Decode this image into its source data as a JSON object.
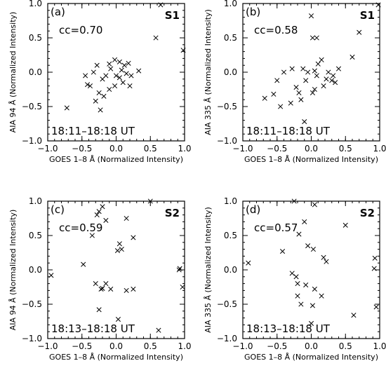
{
  "chart_data": [
    {
      "type": "scatter",
      "panel_label": "(a)",
      "set_label": "S1",
      "cc": "cc=0.70",
      "time_range": "18:11–18:18 UT",
      "xlabel": "GOES 1–8 Å (Normalized Intensity)",
      "ylabel": "AIA 94 Å (Normalized Intensity)",
      "xlim": [
        -1.0,
        1.0
      ],
      "ylim": [
        -1.0,
        1.0
      ],
      "xticks": [
        "−1.0",
        "−0.5",
        "0.0",
        "0.5",
        "1.0"
      ],
      "yticks": [
        "−1.0",
        "−0.5",
        "0.0",
        "0.5",
        "1.0"
      ],
      "marker": "x",
      "points": [
        [
          0.65,
          0.98
        ],
        [
          0.58,
          0.5
        ],
        [
          0.98,
          0.32
        ],
        [
          -0.72,
          -0.52
        ],
        [
          -0.23,
          -0.55
        ],
        [
          -0.1,
          0.12
        ],
        [
          -0.02,
          0.18
        ],
        [
          0.05,
          0.15
        ],
        [
          0.12,
          0.1
        ],
        [
          0.18,
          0.13
        ],
        [
          0.33,
          0.02
        ],
        [
          -0.28,
          0.1
        ],
        [
          -0.33,
          0.0
        ],
        [
          -0.45,
          -0.05
        ],
        [
          -0.42,
          -0.18
        ],
        [
          -0.38,
          -0.2
        ],
        [
          -0.2,
          -0.1
        ],
        [
          -0.25,
          -0.3
        ],
        [
          -0.18,
          -0.35
        ],
        [
          -0.1,
          -0.25
        ],
        [
          -0.08,
          0.05
        ],
        [
          0.0,
          -0.05
        ],
        [
          0.05,
          -0.08
        ],
        [
          0.1,
          -0.15
        ],
        [
          0.15,
          -0.02
        ],
        [
          0.22,
          -0.05
        ],
        [
          -0.15,
          -0.05
        ],
        [
          -0.02,
          -0.2
        ],
        [
          0.2,
          -0.2
        ],
        [
          -0.3,
          -0.42
        ],
        [
          0.08,
          0.03
        ]
      ]
    },
    {
      "type": "scatter",
      "panel_label": "(b)",
      "set_label": "S1",
      "cc": "cc=0.58",
      "time_range": "18:11–18:18 UT",
      "xlabel": "GOES 1–8 Å (Normalized Intensity)",
      "ylabel": "AIA 335 Å (Normalized Intensity)",
      "xlim": [
        -1.0,
        1.0
      ],
      "ylim": [
        -1.0,
        1.0
      ],
      "xticks": [
        "−1.0",
        "−0.5",
        "0.0",
        "0.5",
        "1.0"
      ],
      "yticks": [
        "−1.0",
        "−0.5",
        "0.0",
        "0.5",
        "1.0"
      ],
      "marker": "x",
      "points": [
        [
          0.98,
          0.98
        ],
        [
          0.7,
          0.58
        ],
        [
          0.6,
          0.22
        ],
        [
          0.0,
          0.82
        ],
        [
          0.02,
          0.5
        ],
        [
          0.08,
          0.5
        ],
        [
          -0.1,
          -0.72
        ],
        [
          -0.68,
          -0.38
        ],
        [
          -0.55,
          -0.32
        ],
        [
          -0.45,
          -0.5
        ],
        [
          -0.4,
          0.0
        ],
        [
          -0.28,
          0.05
        ],
        [
          -0.12,
          0.05
        ],
        [
          -0.05,
          0.0
        ],
        [
          0.05,
          0.02
        ],
        [
          0.08,
          -0.05
        ],
        [
          0.15,
          0.18
        ],
        [
          0.25,
          0.0
        ],
        [
          0.3,
          -0.12
        ],
        [
          0.32,
          -0.05
        ],
        [
          -0.5,
          -0.12
        ],
        [
          -0.22,
          -0.22
        ],
        [
          -0.18,
          -0.3
        ],
        [
          -0.08,
          -0.12
        ],
        [
          0.02,
          -0.3
        ],
        [
          0.05,
          -0.25
        ],
        [
          0.1,
          0.12
        ],
        [
          0.18,
          -0.2
        ],
        [
          0.35,
          -0.15
        ],
        [
          0.4,
          0.05
        ],
        [
          -0.3,
          -0.45
        ],
        [
          -0.15,
          -0.4
        ],
        [
          0.22,
          -0.1
        ]
      ]
    },
    {
      "type": "scatter",
      "panel_label": "(c)",
      "set_label": "S2",
      "cc": "cc=0.59",
      "time_range": "18:13–18:18 UT",
      "xlabel": "GOES 1–8 Å (Normalized Intensity)",
      "ylabel": "AIA 94 Å (Normalized Intensity)",
      "xlim": [
        -1.0,
        1.0
      ],
      "ylim": [
        -1.0,
        1.0
      ],
      "xticks": [
        "−1.0",
        "−0.5",
        "0.0",
        "0.5",
        "1.0"
      ],
      "yticks": [
        "−1.0",
        "−0.5",
        "0.0",
        "0.5",
        "1.0"
      ],
      "marker": "x",
      "points": [
        [
          -0.2,
          0.92
        ],
        [
          -0.25,
          0.85
        ],
        [
          -0.28,
          0.8
        ],
        [
          -0.15,
          0.72
        ],
        [
          0.15,
          0.75
        ],
        [
          0.5,
          1.0
        ],
        [
          0.25,
          0.47
        ],
        [
          -0.35,
          0.5
        ],
        [
          0.05,
          0.38
        ],
        [
          0.02,
          0.28
        ],
        [
          -0.48,
          0.08
        ],
        [
          -0.95,
          -0.08
        ],
        [
          0.92,
          0.0
        ],
        [
          0.93,
          0.02
        ],
        [
          0.97,
          -0.25
        ],
        [
          -0.3,
          -0.2
        ],
        [
          -0.2,
          -0.27
        ],
        [
          -0.15,
          -0.2
        ],
        [
          -0.08,
          -0.28
        ],
        [
          0.15,
          -0.3
        ],
        [
          0.25,
          -0.28
        ],
        [
          -0.25,
          -0.58
        ],
        [
          0.03,
          -0.72
        ],
        [
          0.62,
          -0.88
        ],
        [
          -0.22,
          -0.28
        ],
        [
          0.08,
          0.3
        ]
      ]
    },
    {
      "type": "scatter",
      "panel_label": "(d)",
      "set_label": "S2",
      "cc": "cc=0.57",
      "time_range": "18:13–18:18 UT",
      "xlabel": "GOES 1–8 Å (Normalized Intensity)",
      "ylabel": "AIA 335 Å (Normalized Intensity)",
      "xlim": [
        -1.0,
        1.0
      ],
      "ylim": [
        -1.0,
        1.0
      ],
      "xticks": [
        "−1.0",
        "−0.5",
        "0.0",
        "0.5",
        "1.0"
      ],
      "yticks": [
        "−1.0",
        "−0.5",
        "0.0",
        "0.5",
        "1.0"
      ],
      "marker": "x",
      "points": [
        [
          -0.25,
          1.0
        ],
        [
          0.05,
          0.95
        ],
        [
          -0.1,
          0.7
        ],
        [
          0.5,
          0.65
        ],
        [
          -0.18,
          0.52
        ],
        [
          -0.05,
          0.35
        ],
        [
          0.03,
          0.3
        ],
        [
          0.18,
          0.18
        ],
        [
          0.22,
          0.12
        ],
        [
          0.93,
          0.17
        ],
        [
          0.92,
          0.02
        ],
        [
          -0.92,
          0.1
        ],
        [
          -0.42,
          0.27
        ],
        [
          -0.28,
          -0.05
        ],
        [
          -0.22,
          -0.1
        ],
        [
          -0.2,
          -0.2
        ],
        [
          -0.08,
          -0.22
        ],
        [
          0.05,
          -0.28
        ],
        [
          0.15,
          -0.38
        ],
        [
          -0.2,
          -0.38
        ],
        [
          -0.15,
          -0.5
        ],
        [
          0.02,
          -0.52
        ],
        [
          0.0,
          -0.78
        ],
        [
          0.62,
          -0.66
        ],
        [
          0.95,
          -0.54
        ]
      ]
    }
  ]
}
